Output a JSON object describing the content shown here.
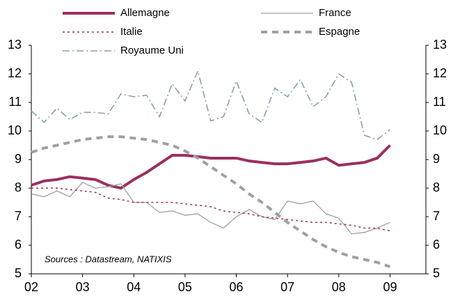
{
  "chart_data": {
    "type": "line",
    "annotation": "Sources : Datastream, NATIXIS",
    "x": [
      2002,
      2002.25,
      2002.5,
      2002.75,
      2003,
      2003.25,
      2003.5,
      2003.75,
      2004,
      2004.25,
      2004.5,
      2004.75,
      2005,
      2005.25,
      2005.5,
      2005.75,
      2006,
      2006.25,
      2006.5,
      2006.75,
      2007,
      2007.25,
      2007.5,
      2007.75,
      2008,
      2008.25,
      2008.5,
      2008.75,
      2009
    ],
    "series": [
      {
        "name": "Allemagne",
        "color": "#9b2f5f",
        "values": [
          8.1,
          8.25,
          8.3,
          8.4,
          8.35,
          8.3,
          8.1,
          8.0,
          8.3,
          8.55,
          8.85,
          9.15,
          9.15,
          9.1,
          9.05,
          9.05,
          9.05,
          8.95,
          8.9,
          8.85,
          8.85,
          8.9,
          8.95,
          9.05,
          8.8,
          8.85,
          8.9,
          9.05,
          9.5
        ]
      },
      {
        "name": "France",
        "color": "#a0a0a0",
        "values": [
          7.8,
          7.7,
          7.9,
          7.7,
          8.2,
          8.0,
          8.05,
          8.15,
          7.5,
          7.5,
          7.15,
          7.2,
          7.05,
          7.1,
          6.8,
          6.6,
          7.0,
          7.25,
          7.0,
          6.9,
          7.55,
          7.45,
          7.55,
          7.1,
          6.95,
          6.4,
          6.45,
          6.6,
          6.8
        ]
      },
      {
        "name": "Italie",
        "color": "#a3304a",
        "values": [
          8.0,
          8.0,
          8.0,
          7.95,
          7.9,
          7.85,
          7.65,
          7.6,
          7.5,
          7.5,
          7.5,
          7.5,
          7.45,
          7.4,
          7.35,
          7.2,
          7.15,
          7.1,
          7.0,
          6.95,
          6.9,
          6.85,
          6.8,
          6.8,
          6.75,
          6.7,
          6.6,
          6.6,
          6.5
        ]
      },
      {
        "name": "Espagne",
        "color": "#a0a0a0",
        "values": [
          9.25,
          9.4,
          9.5,
          9.6,
          9.7,
          9.75,
          9.8,
          9.8,
          9.75,
          9.7,
          9.6,
          9.5,
          9.3,
          9.05,
          8.75,
          8.45,
          8.15,
          7.8,
          7.5,
          7.15,
          6.8,
          6.5,
          6.2,
          5.95,
          5.75,
          5.6,
          5.5,
          5.4,
          5.25
        ]
      },
      {
        "name": "Royaume Uni",
        "color": "#8a9fb0",
        "values": [
          10.7,
          10.3,
          10.8,
          10.4,
          10.65,
          10.65,
          10.6,
          11.3,
          11.2,
          11.25,
          10.5,
          11.65,
          11.05,
          12.1,
          10.35,
          10.5,
          11.75,
          10.6,
          10.3,
          11.5,
          11.2,
          11.8,
          10.85,
          11.2,
          12.0,
          11.7,
          9.85,
          9.7,
          10.05
        ]
      }
    ],
    "xlim": [
      2002,
      2009.7
    ],
    "xticks": [
      {
        "value": 2002,
        "label": "02"
      },
      {
        "value": 2003,
        "label": "03"
      },
      {
        "value": 2004,
        "label": "04"
      },
      {
        "value": 2005,
        "label": "05"
      },
      {
        "value": 2006,
        "label": "06"
      },
      {
        "value": 2007,
        "label": "07"
      },
      {
        "value": 2008,
        "label": "08"
      },
      {
        "value": 2009,
        "label": "09"
      }
    ],
    "ylim": [
      5,
      13
    ],
    "yticks": [
      5,
      6,
      7,
      8,
      9,
      10,
      11,
      12,
      13
    ],
    "y2lim": [
      5,
      13
    ],
    "y2ticks": [
      5,
      6,
      7,
      8,
      9,
      10,
      11,
      12,
      13
    ],
    "grid": false
  }
}
